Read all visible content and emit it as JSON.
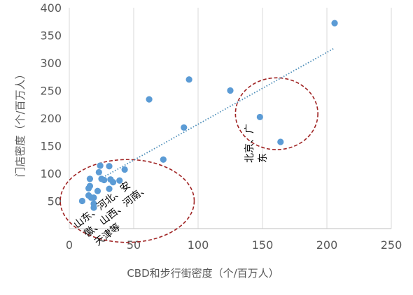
{
  "chart_data": {
    "type": "scatter",
    "xlabel": "CBD和步行街密度（个/百万人）",
    "ylabel": "门店密度（个/百万人）",
    "xlim": [
      0,
      250
    ],
    "ylim": [
      0,
      400
    ],
    "xticks": [
      0,
      50,
      100,
      150,
      200,
      250
    ],
    "yticks": [
      50,
      100,
      150,
      200,
      250,
      300,
      350,
      400
    ],
    "xtick_labels": [
      "0",
      "50",
      "100",
      "150",
      "200",
      "250"
    ],
    "ytick_labels": [
      "50",
      "100",
      "150",
      "200",
      "250",
      "300",
      "350",
      "400"
    ],
    "grid": "vertical",
    "legend": "none",
    "point_color": "#5b9bd5",
    "trendline": {
      "style": "dotted",
      "color": "#4a8cb8",
      "from": [
        24,
        90
      ],
      "to": [
        206,
        327
      ]
    },
    "points": [
      {
        "x": 206,
        "y": 372
      },
      {
        "x": 93,
        "y": 270
      },
      {
        "x": 125,
        "y": 250
      },
      {
        "x": 62,
        "y": 234
      },
      {
        "x": 89,
        "y": 183
      },
      {
        "x": 148,
        "y": 202
      },
      {
        "x": 164,
        "y": 157
      },
      {
        "x": 73,
        "y": 125
      },
      {
        "x": 43,
        "y": 107
      },
      {
        "x": 24,
        "y": 114
      },
      {
        "x": 31,
        "y": 113
      },
      {
        "x": 23,
        "y": 102
      },
      {
        "x": 16,
        "y": 90
      },
      {
        "x": 25,
        "y": 90
      },
      {
        "x": 27,
        "y": 88
      },
      {
        "x": 32,
        "y": 89
      },
      {
        "x": 34,
        "y": 84
      },
      {
        "x": 39,
        "y": 87
      },
      {
        "x": 16,
        "y": 77
      },
      {
        "x": 22,
        "y": 68
      },
      {
        "x": 31,
        "y": 72
      },
      {
        "x": 15,
        "y": 73
      },
      {
        "x": 15,
        "y": 60
      },
      {
        "x": 17,
        "y": 56
      },
      {
        "x": 19,
        "y": 56
      },
      {
        "x": 10,
        "y": 50
      },
      {
        "x": 19,
        "y": 45
      },
      {
        "x": 19,
        "y": 38
      }
    ],
    "annotations": [
      {
        "id": "cluster-north",
        "lines": [
          "北京、广",
          "东"
        ],
        "ellipse_center": [
          161,
          208
        ],
        "ellipse_radii": [
          32,
          65
        ],
        "color": "#a02424"
      },
      {
        "id": "cluster-provinces",
        "lines": [
          "山东、河北、安",
          "徽、山西、河南、",
          "天津等"
        ],
        "ellipse_center": [
          45,
          50
        ],
        "ellipse_radii": [
          52,
          75
        ],
        "color": "#a02424"
      }
    ]
  }
}
